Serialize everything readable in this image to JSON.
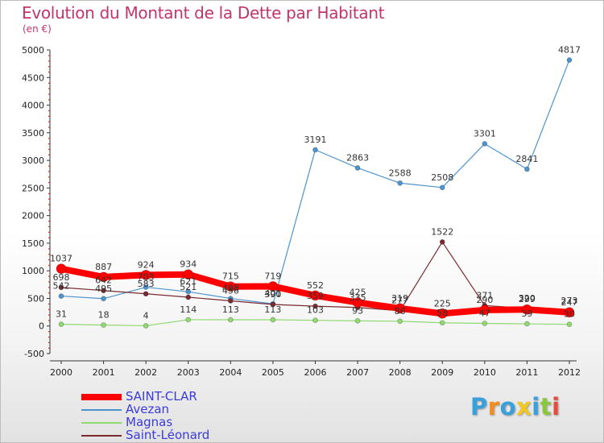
{
  "header": {
    "title": "Evolution du Montant de la Dette par Habitant",
    "subtitle": "(en €)"
  },
  "colors": {
    "title": "#c2356b",
    "legend_text": "#3b3bdc",
    "axis": "#333333"
  },
  "chart_data": {
    "type": "line",
    "title": "Evolution du Montant de la Dette par Habitant",
    "subtitle": "(en €)",
    "xlabel": "",
    "ylabel": "",
    "ylim": [
      -500,
      5000
    ],
    "yticks": [
      -500,
      0,
      500,
      1000,
      1500,
      2000,
      2500,
      3000,
      3500,
      4000,
      4500,
      5000
    ],
    "categories": [
      "2000",
      "2001",
      "2002",
      "2003",
      "2004",
      "2005",
      "2006",
      "2007",
      "2008",
      "2009",
      "2010",
      "2011",
      "2012"
    ],
    "grid": false,
    "legend_position": "bottom-left",
    "series": [
      {
        "name": "SAINT-CLAR",
        "color": "#ff0000",
        "values": [
          1037,
          887,
          924,
          934,
          715,
          719,
          552,
          425,
          319,
          225,
          290,
          299,
          247
        ],
        "labels": [
          "1037",
          "887",
          "924",
          "934",
          "715",
          "719",
          "552",
          "425",
          "319",
          "225",
          "290",
          "299",
          "247"
        ]
      },
      {
        "name": "Avezan",
        "color": "#4d94cf",
        "values": [
          542,
          495,
          703,
          621,
          498,
          401,
          3191,
          2863,
          2588,
          2508,
          3301,
          2841,
          4817
        ],
        "labels": [
          "542",
          "495",
          "703",
          "621",
          "498",
          "401",
          "3191",
          "2863",
          "2588",
          "2508",
          "3301",
          "2841",
          "4817"
        ]
      },
      {
        "name": "Magnas",
        "color": "#8fd970",
        "values": [
          31,
          18,
          4,
          114,
          113,
          113,
          103,
          93,
          86,
          58,
          47,
          39,
          30
        ],
        "labels": [
          "31",
          "18",
          "4",
          "114",
          "113",
          "113",
          "103",
          "93",
          "86",
          "58",
          "47",
          "39",
          "30"
        ]
      },
      {
        "name": "Saint-Léonard",
        "color": "#7a2a30",
        "values": [
          698,
          642,
          583,
          521,
          456,
          390,
          359,
          335,
          277,
          1522,
          371,
          320,
          273
        ],
        "labels": [
          "698",
          "642",
          "583",
          "521",
          "456",
          "390",
          "359",
          "335",
          "277",
          "1522",
          "371",
          "320",
          "273"
        ]
      }
    ]
  },
  "legend": {
    "items": [
      {
        "label": "SAINT-CLAR",
        "color": "#ff0000"
      },
      {
        "label": "Avezan",
        "color": "#4d94cf"
      },
      {
        "label": "Magnas",
        "color": "#8fd970"
      },
      {
        "label": "Saint-Léonard",
        "color": "#7a2a30"
      }
    ]
  },
  "logo": {
    "text": "Proxiti",
    "letters": [
      {
        "ch": "P",
        "color": "#3aa0db"
      },
      {
        "ch": "r",
        "color": "#f28c1e"
      },
      {
        "ch": "o",
        "color": "#3aa0db"
      },
      {
        "ch": "x",
        "color": "#f2c81e"
      },
      {
        "ch": "i",
        "color": "#3aa0db"
      },
      {
        "ch": "t",
        "color": "#8cc63f"
      },
      {
        "ch": "i",
        "color": "#e84b3c"
      }
    ]
  }
}
